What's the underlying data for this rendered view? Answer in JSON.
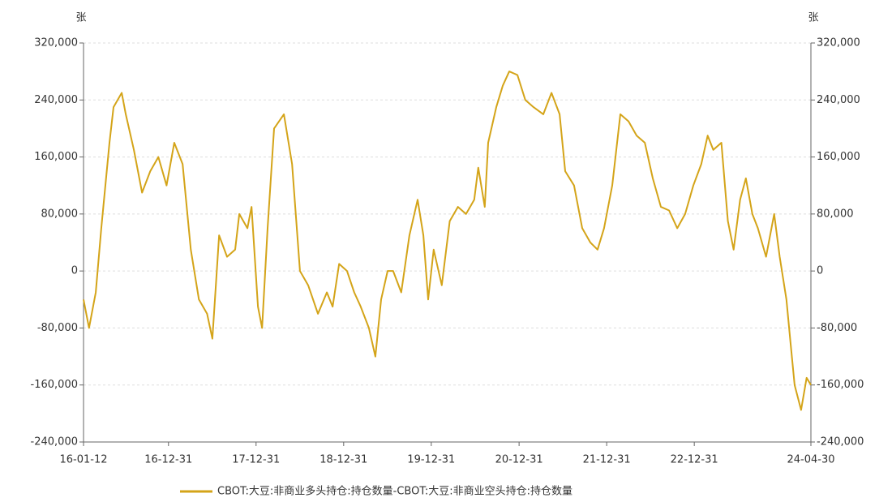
{
  "chart_data": {
    "type": "line",
    "y_label": "张",
    "y2_label": "张",
    "xlim": [
      "16-01-12",
      "24-04-30"
    ],
    "xticks": [
      "16-01-12",
      "16-12-31",
      "17-12-31",
      "18-12-31",
      "19-12-31",
      "20-12-31",
      "21-12-31",
      "22-12-31",
      "24-04-30"
    ],
    "ylim": [
      -240000,
      320000
    ],
    "yticks": [
      {
        "value": -240000,
        "label": "-240,000"
      },
      {
        "value": -160000,
        "label": "-160,000"
      },
      {
        "value": -80000,
        "label": "-80,000"
      },
      0,
      {
        "value": 80000,
        "label": "80,000"
      },
      {
        "value": 160000,
        "label": "160,000"
      },
      {
        "value": 240000,
        "label": "240,000"
      },
      {
        "value": 320000,
        "label": "320,000"
      }
    ],
    "y2lim": [
      -240000,
      320000
    ],
    "y2ticks": [
      {
        "value": -240000,
        "label": "-240,000"
      },
      {
        "value": -160000,
        "label": "-160,000"
      },
      {
        "value": -80000,
        "label": "-80,000"
      },
      0,
      {
        "value": 80000,
        "label": "80,000"
      },
      {
        "value": 160000,
        "label": "160,000"
      },
      {
        "value": 240000,
        "label": "240,000"
      },
      {
        "value": 320000,
        "label": "320,000"
      }
    ],
    "grid": true,
    "legend": "bottom",
    "x": [
      "16-01-12",
      "16-02-04",
      "16-03-03",
      "16-03-26",
      "16-04-29",
      "16-05-16",
      "16-06-19",
      "16-07-06",
      "16-08-09",
      "16-09-12",
      "16-10-16",
      "16-11-19",
      "16-12-23",
      "17-01-24",
      "17-02-28",
      "17-04-03",
      "17-05-07",
      "17-06-10",
      "17-07-02",
      "17-07-30",
      "17-09-01",
      "17-10-05",
      "17-10-22",
      "17-11-25",
      "17-12-12",
      "18-01-08",
      "18-01-25",
      "18-02-17",
      "18-03-16",
      "18-04-26",
      "18-05-30",
      "18-07-02",
      "18-08-05",
      "18-09-15",
      "18-10-22",
      "18-11-15",
      "18-12-12",
      "19-01-14",
      "19-02-13",
      "19-03-12",
      "19-04-15",
      "19-05-12",
      "19-06-05",
      "19-07-02",
      "19-07-25",
      "19-08-28",
      "19-10-01",
      "19-11-04",
      "19-11-28",
      "19-12-18",
      "20-01-10",
      "20-02-13",
      "20-03-17",
      "20-04-20",
      "20-05-24",
      "20-06-27",
      "20-07-14",
      "20-08-10",
      "20-08-24",
      "20-09-27",
      "20-10-24",
      "20-11-20",
      "20-12-24",
      "21-01-26",
      "21-03-01",
      "21-04-11",
      "21-05-15",
      "21-06-18",
      "21-07-11",
      "21-08-17",
      "21-09-20",
      "21-10-24",
      "21-11-23",
      "21-12-20",
      "22-01-23",
      "22-02-26",
      "22-04-01",
      "22-05-05",
      "22-06-08",
      "22-07-11",
      "22-08-14",
      "22-09-17",
      "22-10-21",
      "22-11-23",
      "22-12-27",
      "23-01-29",
      "23-02-25",
      "23-03-20",
      "23-04-23",
      "23-05-20",
      "23-06-13",
      "23-07-10",
      "23-08-03",
      "23-08-30",
      "23-09-22",
      "23-10-26",
      "23-11-29",
      "23-12-22",
      "24-01-19",
      "24-02-05",
      "24-02-22",
      "24-03-20",
      "24-04-12",
      "24-04-30"
    ],
    "series": [
      {
        "name": "CBOT:大豆:非商业多头持仓:持仓数量-CBOT:大豆:非商业空头持仓:持仓数量",
        "color": "#d4a419",
        "values": [
          -40000,
          -80000,
          -30000,
          60000,
          180000,
          230000,
          250000,
          220000,
          170000,
          110000,
          140000,
          160000,
          120000,
          180000,
          150000,
          30000,
          -40000,
          -60000,
          -95000,
          50000,
          20000,
          30000,
          80000,
          60000,
          90000,
          -50000,
          -80000,
          60000,
          200000,
          220000,
          150000,
          0,
          -20000,
          -60000,
          -30000,
          -50000,
          10000,
          0,
          -30000,
          -50000,
          -80000,
          -120000,
          -40000,
          0,
          0,
          -30000,
          50000,
          100000,
          50000,
          -40000,
          30000,
          -20000,
          70000,
          90000,
          80000,
          100000,
          145000,
          90000,
          180000,
          230000,
          260000,
          280000,
          275000,
          240000,
          230000,
          220000,
          250000,
          220000,
          140000,
          120000,
          60000,
          40000,
          30000,
          60000,
          120000,
          220000,
          210000,
          190000,
          180000,
          130000,
          90000,
          85000,
          60000,
          80000,
          120000,
          150000,
          190000,
          170000,
          180000,
          70000,
          30000,
          100000,
          130000,
          80000,
          60000,
          20000,
          80000,
          20000,
          -40000,
          -100000,
          -160000,
          -195000,
          -150000,
          -160000
        ]
      }
    ]
  }
}
